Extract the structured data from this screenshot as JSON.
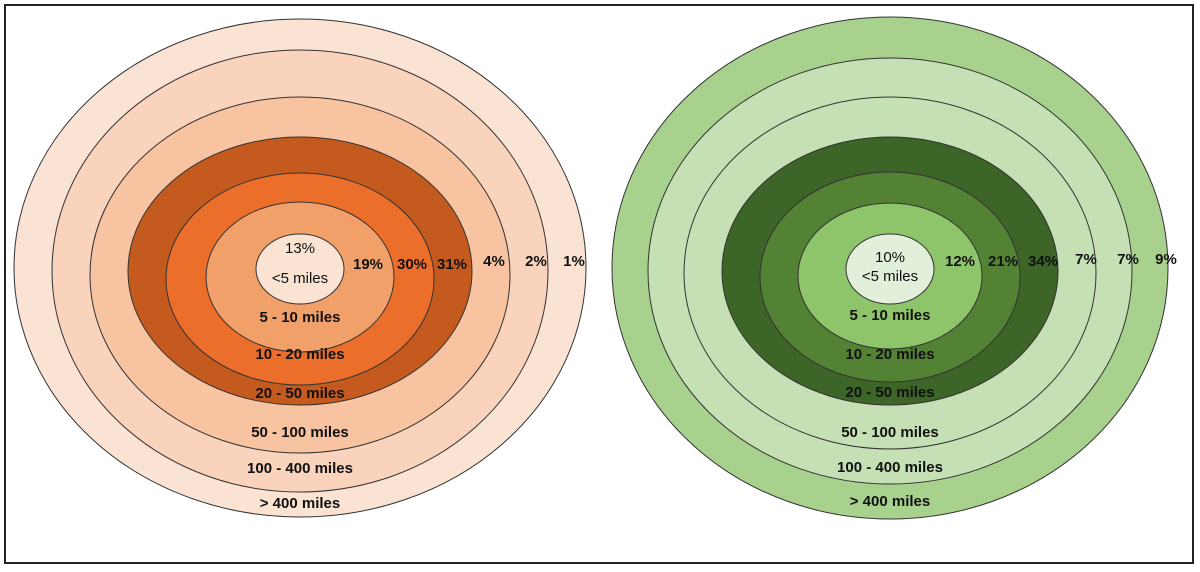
{
  "diagrams": [
    {
      "id": "orange",
      "rings": [
        {
          "label": "<5 miles",
          "percent": "13%",
          "color": "#fbe3d4"
        },
        {
          "label": "5 - 10 miles",
          "percent": "19%",
          "color": "#f2a06a"
        },
        {
          "label": "10 - 20 miles",
          "percent": "30%",
          "color": "#ec6e2b"
        },
        {
          "label": "20 - 50 miles",
          "percent": "31%",
          "color": "#c55a1f"
        },
        {
          "label": "50 - 100 miles",
          "percent": "4%",
          "color": "#f7c3a0"
        },
        {
          "label": "100 - 400 miles",
          "percent": "2%",
          "color": "#f9d3bb"
        },
        {
          "label": "> 400 miles",
          "percent": "1%",
          "color": "#fbe3d4"
        }
      ]
    },
    {
      "id": "green",
      "rings": [
        {
          "label": "<5 miles",
          "percent": "10%",
          "color": "#e2efda"
        },
        {
          "label": "5 - 10 miles",
          "percent": "12%",
          "color": "#8fc56a"
        },
        {
          "label": "10 - 20 miles",
          "percent": "21%",
          "color": "#548235"
        },
        {
          "label": "20 - 50 miles",
          "percent": "34%",
          "color": "#3c6527"
        },
        {
          "label": "50 - 100 miles",
          "percent": "7%",
          "color": "#c5e0b4"
        },
        {
          "label": "100 - 400 miles",
          "percent": "7%",
          "color": "#c5e0b4"
        },
        {
          "label": "> 400 miles",
          "percent": "9%",
          "color": "#a9d18e"
        }
      ]
    }
  ]
}
